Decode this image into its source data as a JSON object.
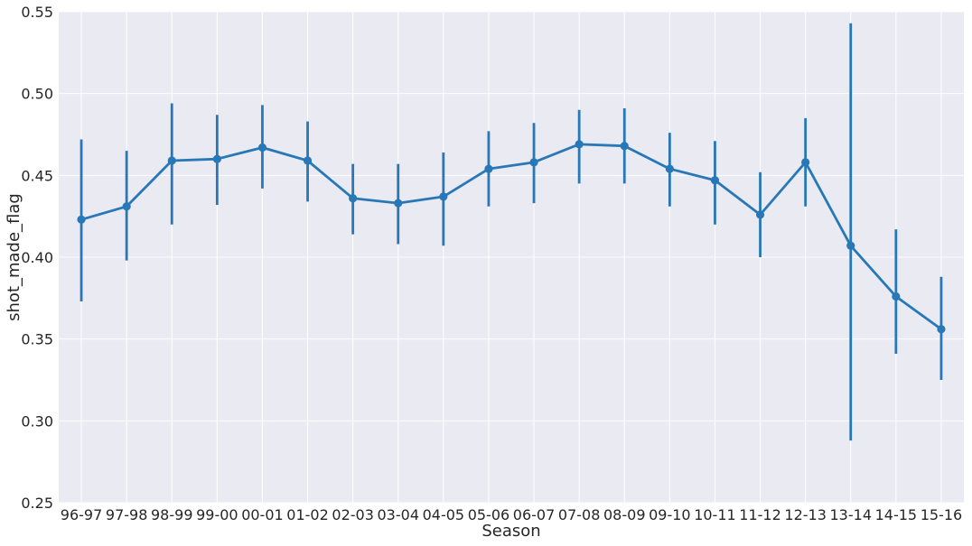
{
  "chart_data": {
    "type": "line",
    "xlabel": "Season",
    "ylabel": "shot_made_flag",
    "ylim": [
      0.25,
      0.55
    ],
    "yticks": [
      "0.25",
      "0.30",
      "0.35",
      "0.40",
      "0.45",
      "0.50",
      "0.55"
    ],
    "grid": true,
    "legend": "none",
    "categories": [
      "96-97",
      "97-98",
      "98-99",
      "99-00",
      "00-01",
      "01-02",
      "02-03",
      "03-04",
      "04-05",
      "05-06",
      "06-07",
      "07-08",
      "08-09",
      "09-10",
      "10-11",
      "11-12",
      "12-13",
      "13-14",
      "14-15",
      "15-16"
    ],
    "series": [
      {
        "values": [
          0.423,
          0.431,
          0.459,
          0.46,
          0.467,
          0.459,
          0.436,
          0.433,
          0.437,
          0.454,
          0.458,
          0.469,
          0.468,
          0.454,
          0.447,
          0.426,
          0.458,
          0.407,
          0.376,
          0.356
        ],
        "err_low": [
          0.373,
          0.398,
          0.42,
          0.432,
          0.442,
          0.434,
          0.414,
          0.408,
          0.407,
          0.431,
          0.433,
          0.445,
          0.445,
          0.431,
          0.42,
          0.4,
          0.431,
          0.288,
          0.341,
          0.325
        ],
        "err_high": [
          0.472,
          0.465,
          0.494,
          0.487,
          0.493,
          0.483,
          0.457,
          0.457,
          0.464,
          0.477,
          0.482,
          0.49,
          0.491,
          0.476,
          0.471,
          0.452,
          0.485,
          0.543,
          0.417,
          0.388
        ]
      }
    ],
    "colors": {
      "line": "#2878b8",
      "background": "#eaeaf2",
      "grid": "#ffffff"
    }
  }
}
